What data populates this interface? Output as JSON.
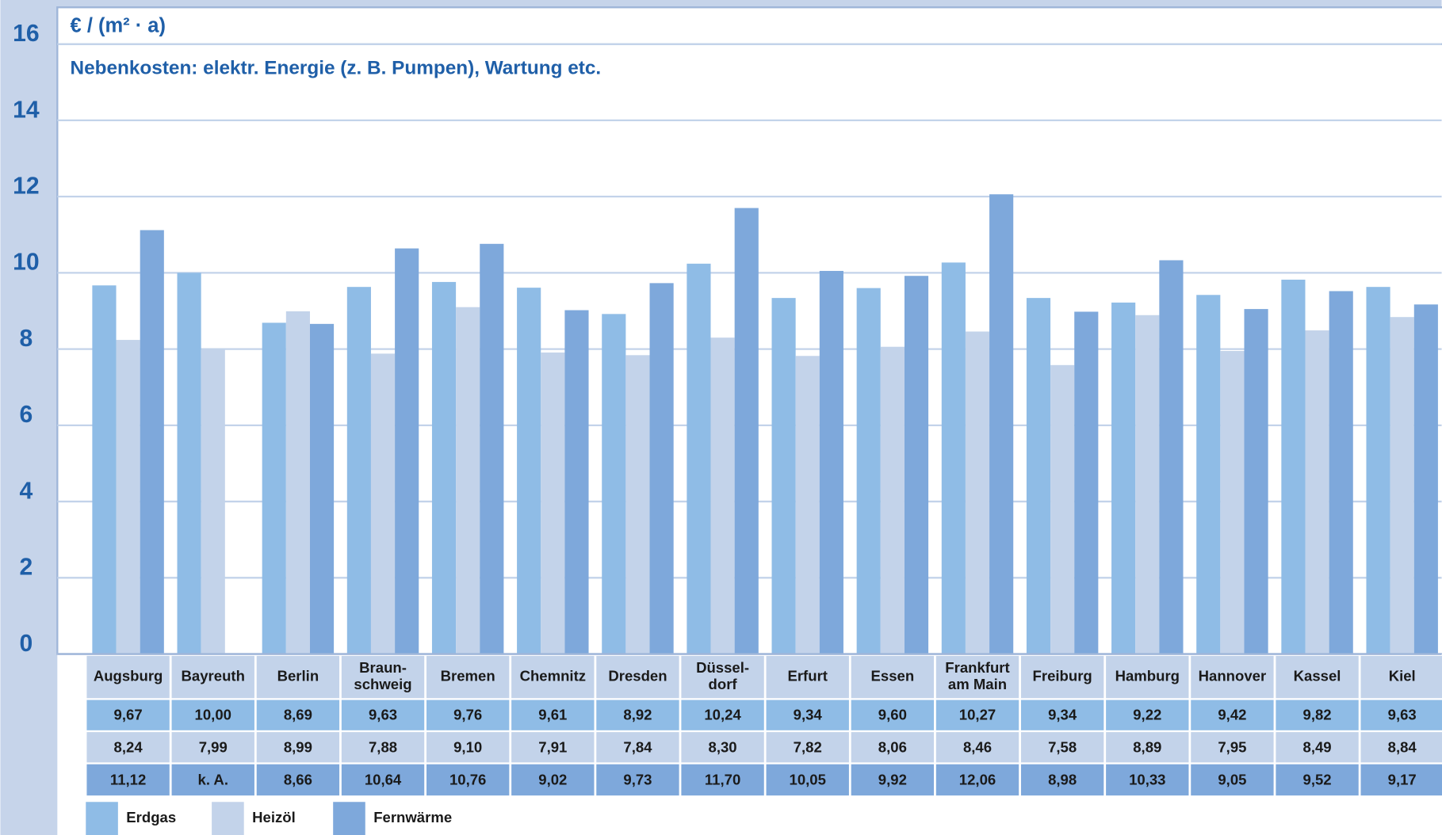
{
  "chart_data": {
    "type": "bar",
    "y_label": "€ / (m² · a)",
    "subtitle": "Nebenkosten: elektr. Energie (z. B. Pumpen), Wartung etc.",
    "categories": [
      "Augsburg",
      "Bayreuth",
      "Berlin",
      "Braun-\nschweig",
      "Bremen",
      "Chemnitz",
      "Dresden",
      "Düssel-\ndorf",
      "Erfurt",
      "Essen",
      "Frankfurt\nam Main",
      "Freiburg",
      "Hamburg",
      "Hannover",
      "Kassel",
      "Kiel"
    ],
    "series": [
      {
        "name": "Erdgas",
        "color": "#8fbce6",
        "values": [
          9.67,
          10.0,
          8.69,
          9.63,
          9.76,
          9.61,
          8.92,
          10.24,
          9.34,
          9.6,
          10.27,
          9.34,
          9.22,
          9.42,
          9.82,
          9.63
        ],
        "value_labels": [
          "9,67",
          "10,00",
          "8,69",
          "9,63",
          "9,76",
          "9,61",
          "8,92",
          "10,24",
          "9,34",
          "9,60",
          "10,27",
          "9,34",
          "9,22",
          "9,42",
          "9,82",
          "9,63"
        ]
      },
      {
        "name": "Heizöl",
        "color": "#c3d3ea",
        "values": [
          8.24,
          7.99,
          8.99,
          7.88,
          9.1,
          7.91,
          7.84,
          8.3,
          7.82,
          8.06,
          8.46,
          7.58,
          8.89,
          7.95,
          8.49,
          8.84
        ],
        "value_labels": [
          "8,24",
          "7,99",
          "8,99",
          "7,88",
          "9,10",
          "7,91",
          "7,84",
          "8,30",
          "7,82",
          "8,06",
          "8,46",
          "7,58",
          "8,89",
          "7,95",
          "8,49",
          "8,84"
        ]
      },
      {
        "name": "Fernwärme",
        "color": "#7ea8db",
        "values": [
          11.12,
          null,
          8.66,
          10.64,
          10.76,
          9.02,
          9.73,
          11.7,
          10.05,
          9.92,
          12.06,
          8.98,
          10.33,
          9.05,
          9.52,
          9.17
        ],
        "value_labels": [
          "11,12",
          "k. A.",
          "8,66",
          "10,64",
          "10,76",
          "9,02",
          "9,73",
          "11,70",
          "10,05",
          "9,92",
          "12,06",
          "8,98",
          "10,33",
          "9,05",
          "9,52",
          "9,17"
        ]
      }
    ],
    "ylim": [
      0,
      16
    ],
    "yticks": [
      0,
      2,
      4,
      6,
      8,
      10,
      12,
      14,
      16
    ],
    "grid": true
  }
}
